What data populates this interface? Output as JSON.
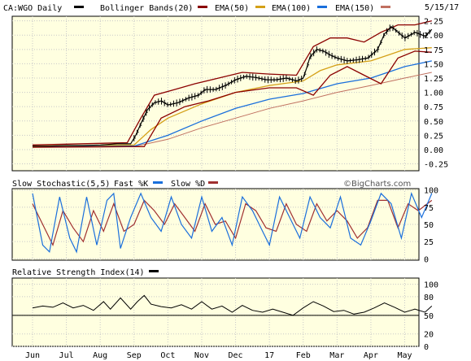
{
  "header": {
    "symbol": "CA:WGO Daily",
    "date": "5/15/17",
    "watermark": "©BigCharts.com"
  },
  "colors": {
    "background": "#ffffe0",
    "price": "#000000",
    "bollinger": "#8b0000",
    "ema50": "#d4a017",
    "ema100": "#1a6fdc",
    "ema150": "#c07060",
    "fastK": "#1a6fdc",
    "slowD": "#a03030",
    "rsi": "#000000",
    "grid": "#c8c8c8"
  },
  "chart_data": [
    {
      "type": "line",
      "panel": "price",
      "legend": [
        {
          "name": "CA:WGO Daily",
          "color": "#000000"
        },
        {
          "name": "Bollinger Bands(20)",
          "color": "#8b0000"
        },
        {
          "name": "EMA(50)",
          "color": "#d4a017"
        },
        {
          "name": "EMA(100)",
          "color": "#1a6fdc"
        },
        {
          "name": "EMA(150)",
          "color": "#c07060"
        }
      ],
      "x_labels": [
        "Jun",
        "Jul",
        "Aug",
        "Sep",
        "Oct",
        "Nov",
        "Dec",
        "17",
        "Feb",
        "Mar",
        "Apr",
        "May"
      ],
      "y_ticks": [
        "2.25",
        "2.00",
        "1.75",
        "1.50",
        "1.25",
        "1.00",
        "0.75",
        "0.50",
        "0.25",
        "0.00",
        "-0.25"
      ],
      "ylim": [
        -0.25,
        2.25
      ],
      "price": [
        [
          0,
          0.06
        ],
        [
          0.5,
          0.06
        ],
        [
          1,
          0.07
        ],
        [
          1.5,
          0.07
        ],
        [
          2,
          0.08
        ],
        [
          2.5,
          0.1
        ],
        [
          2.9,
          0.1
        ],
        [
          3.05,
          0.25
        ],
        [
          3.2,
          0.45
        ],
        [
          3.4,
          0.7
        ],
        [
          3.6,
          0.82
        ],
        [
          3.8,
          0.85
        ],
        [
          4,
          0.78
        ],
        [
          4.3,
          0.82
        ],
        [
          4.6,
          0.9
        ],
        [
          4.9,
          0.95
        ],
        [
          5.1,
          1.05
        ],
        [
          5.4,
          1.05
        ],
        [
          5.7,
          1.12
        ],
        [
          6,
          1.22
        ],
        [
          6.3,
          1.28
        ],
        [
          6.6,
          1.26
        ],
        [
          6.9,
          1.22
        ],
        [
          7.2,
          1.22
        ],
        [
          7.5,
          1.25
        ],
        [
          7.8,
          1.2
        ],
        [
          8,
          1.25
        ],
        [
          8.1,
          1.42
        ],
        [
          8.2,
          1.62
        ],
        [
          8.4,
          1.75
        ],
        [
          8.6,
          1.72
        ],
        [
          8.8,
          1.65
        ],
        [
          9,
          1.6
        ],
        [
          9.3,
          1.55
        ],
        [
          9.6,
          1.57
        ],
        [
          9.9,
          1.6
        ],
        [
          10.2,
          1.75
        ],
        [
          10.4,
          2.02
        ],
        [
          10.6,
          2.15
        ],
        [
          10.8,
          2.05
        ],
        [
          11,
          1.95
        ],
        [
          11.3,
          2.05
        ],
        [
          11.6,
          1.98
        ],
        [
          11.8,
          2.1
        ]
      ],
      "bollinger_upper": [
        [
          0,
          0.08
        ],
        [
          2.8,
          0.12
        ],
        [
          3.2,
          0.55
        ],
        [
          3.6,
          0.95
        ],
        [
          4.2,
          1.05
        ],
        [
          4.8,
          1.15
        ],
        [
          5.5,
          1.25
        ],
        [
          6.2,
          1.35
        ],
        [
          7,
          1.32
        ],
        [
          7.8,
          1.3
        ],
        [
          8.3,
          1.8
        ],
        [
          8.8,
          1.95
        ],
        [
          9.3,
          1.95
        ],
        [
          9.8,
          1.88
        ],
        [
          10.3,
          2.05
        ],
        [
          10.8,
          2.18
        ],
        [
          11.3,
          2.18
        ],
        [
          11.8,
          2.25
        ]
      ],
      "bollinger_lower": [
        [
          0,
          0.04
        ],
        [
          2.8,
          0.05
        ],
        [
          3.3,
          0.05
        ],
        [
          3.8,
          0.55
        ],
        [
          4.5,
          0.75
        ],
        [
          5.2,
          0.85
        ],
        [
          6,
          1.0
        ],
        [
          7,
          1.08
        ],
        [
          7.8,
          1.08
        ],
        [
          8.3,
          0.95
        ],
        [
          8.8,
          1.3
        ],
        [
          9.3,
          1.45
        ],
        [
          9.8,
          1.3
        ],
        [
          10.3,
          1.15
        ],
        [
          10.8,
          1.6
        ],
        [
          11.3,
          1.72
        ],
        [
          11.8,
          1.7
        ]
      ],
      "ema50": [
        [
          0,
          0.06
        ],
        [
          3,
          0.08
        ],
        [
          3.5,
          0.35
        ],
        [
          4,
          0.55
        ],
        [
          5,
          0.8
        ],
        [
          6,
          1.0
        ],
        [
          7,
          1.12
        ],
        [
          8,
          1.2
        ],
        [
          8.5,
          1.38
        ],
        [
          9,
          1.48
        ],
        [
          10,
          1.55
        ],
        [
          10.5,
          1.65
        ],
        [
          11,
          1.75
        ],
        [
          11.8,
          1.78
        ]
      ],
      "ema100": [
        [
          0,
          0.06
        ],
        [
          3,
          0.06
        ],
        [
          4,
          0.25
        ],
        [
          5,
          0.5
        ],
        [
          6,
          0.72
        ],
        [
          7,
          0.88
        ],
        [
          8,
          0.98
        ],
        [
          9,
          1.15
        ],
        [
          10,
          1.25
        ],
        [
          10.5,
          1.35
        ],
        [
          11,
          1.45
        ],
        [
          11.8,
          1.55
        ]
      ],
      "ema150": [
        [
          0,
          0.06
        ],
        [
          3,
          0.05
        ],
        [
          4,
          0.18
        ],
        [
          5,
          0.38
        ],
        [
          6,
          0.55
        ],
        [
          7,
          0.72
        ],
        [
          8,
          0.85
        ],
        [
          9,
          1.0
        ],
        [
          10,
          1.12
        ],
        [
          11,
          1.25
        ],
        [
          11.8,
          1.35
        ]
      ]
    },
    {
      "type": "line",
      "panel": "stochastic",
      "title": "Slow Stochastic(5,5) Fast %K",
      "legend": [
        {
          "name": "Fast %K",
          "color": "#1a6fdc"
        },
        {
          "name": "Slow %D",
          "color": "#a03030"
        }
      ],
      "y_ticks": [
        "100",
        "75",
        "50",
        "25",
        "0"
      ],
      "ylim": [
        0,
        100
      ],
      "fastK": [
        [
          0,
          95
        ],
        [
          0.3,
          20
        ],
        [
          0.5,
          10
        ],
        [
          0.8,
          90
        ],
        [
          1.1,
          30
        ],
        [
          1.3,
          10
        ],
        [
          1.6,
          90
        ],
        [
          1.9,
          20
        ],
        [
          2.2,
          85
        ],
        [
          2.4,
          95
        ],
        [
          2.6,
          15
        ],
        [
          2.9,
          60
        ],
        [
          3.2,
          95
        ],
        [
          3.5,
          60
        ],
        [
          3.8,
          40
        ],
        [
          4.1,
          90
        ],
        [
          4.4,
          50
        ],
        [
          4.7,
          30
        ],
        [
          5.0,
          90
        ],
        [
          5.3,
          40
        ],
        [
          5.6,
          60
        ],
        [
          5.9,
          20
        ],
        [
          6.2,
          90
        ],
        [
          6.5,
          70
        ],
        [
          6.8,
          40
        ],
        [
          7.0,
          20
        ],
        [
          7.3,
          90
        ],
        [
          7.6,
          60
        ],
        [
          7.9,
          30
        ],
        [
          8.2,
          90
        ],
        [
          8.5,
          60
        ],
        [
          8.8,
          45
        ],
        [
          9.1,
          90
        ],
        [
          9.4,
          30
        ],
        [
          9.7,
          20
        ],
        [
          10.0,
          55
        ],
        [
          10.3,
          95
        ],
        [
          10.6,
          80
        ],
        [
          10.9,
          30
        ],
        [
          11.2,
          95
        ],
        [
          11.5,
          60
        ],
        [
          11.8,
          95
        ]
      ],
      "slowD": [
        [
          0,
          80
        ],
        [
          0.3,
          50
        ],
        [
          0.6,
          20
        ],
        [
          0.9,
          70
        ],
        [
          1.2,
          45
        ],
        [
          1.5,
          25
        ],
        [
          1.8,
          70
        ],
        [
          2.1,
          40
        ],
        [
          2.4,
          80
        ],
        [
          2.7,
          40
        ],
        [
          3.0,
          50
        ],
        [
          3.3,
          85
        ],
        [
          3.6,
          70
        ],
        [
          3.9,
          50
        ],
        [
          4.2,
          80
        ],
        [
          4.5,
          60
        ],
        [
          4.8,
          40
        ],
        [
          5.1,
          80
        ],
        [
          5.4,
          50
        ],
        [
          5.7,
          55
        ],
        [
          6.0,
          30
        ],
        [
          6.3,
          80
        ],
        [
          6.6,
          70
        ],
        [
          6.9,
          45
        ],
        [
          7.2,
          40
        ],
        [
          7.5,
          80
        ],
        [
          7.8,
          50
        ],
        [
          8.1,
          40
        ],
        [
          8.4,
          80
        ],
        [
          8.7,
          55
        ],
        [
          9.0,
          70
        ],
        [
          9.3,
          55
        ],
        [
          9.6,
          30
        ],
        [
          9.9,
          45
        ],
        [
          10.2,
          85
        ],
        [
          10.5,
          85
        ],
        [
          10.8,
          45
        ],
        [
          11.1,
          80
        ],
        [
          11.4,
          70
        ],
        [
          11.8,
          85
        ]
      ]
    },
    {
      "type": "line",
      "panel": "rsi",
      "title": "Relative Strength Index(14)",
      "y_ticks": [
        "100",
        "80",
        "50",
        "20",
        "0"
      ],
      "ylim": [
        0,
        100
      ],
      "rsi": [
        [
          0,
          62
        ],
        [
          0.3,
          65
        ],
        [
          0.6,
          63
        ],
        [
          0.9,
          70
        ],
        [
          1.2,
          62
        ],
        [
          1.5,
          66
        ],
        [
          1.8,
          58
        ],
        [
          2.1,
          72
        ],
        [
          2.3,
          60
        ],
        [
          2.6,
          78
        ],
        [
          2.9,
          60
        ],
        [
          3.1,
          72
        ],
        [
          3.3,
          82
        ],
        [
          3.5,
          68
        ],
        [
          3.8,
          64
        ],
        [
          4.1,
          62
        ],
        [
          4.4,
          67
        ],
        [
          4.7,
          60
        ],
        [
          5.0,
          72
        ],
        [
          5.3,
          60
        ],
        [
          5.6,
          65
        ],
        [
          5.9,
          55
        ],
        [
          6.2,
          66
        ],
        [
          6.5,
          58
        ],
        [
          6.8,
          55
        ],
        [
          7.1,
          60
        ],
        [
          7.4,
          55
        ],
        [
          7.7,
          50
        ],
        [
          8.0,
          62
        ],
        [
          8.3,
          72
        ],
        [
          8.6,
          65
        ],
        [
          8.9,
          56
        ],
        [
          9.2,
          58
        ],
        [
          9.5,
          52
        ],
        [
          9.8,
          55
        ],
        [
          10.1,
          62
        ],
        [
          10.4,
          70
        ],
        [
          10.7,
          63
        ],
        [
          11.0,
          55
        ],
        [
          11.3,
          60
        ],
        [
          11.6,
          55
        ],
        [
          11.8,
          65
        ]
      ]
    }
  ]
}
